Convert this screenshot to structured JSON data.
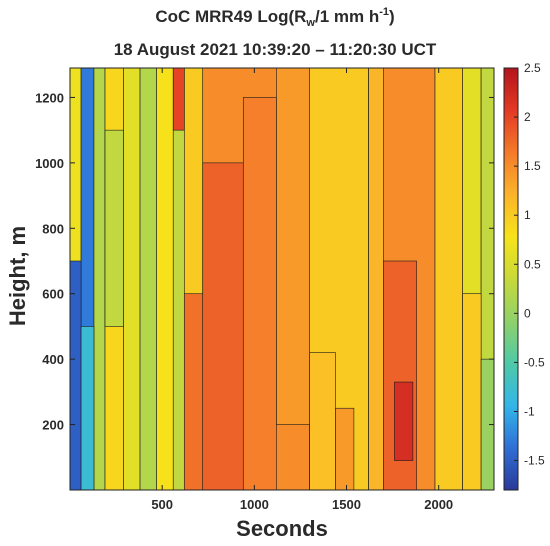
{
  "chart_data": {
    "type": "heatmap",
    "title_line1": {
      "prefix": "CoC MRR49 Log(R",
      "subscript": "w",
      "middle": "/1 mm h",
      "superscript": "-1",
      "suffix": ")"
    },
    "title_line2": "18 August 2021 10:39:20 – 11:20:30 UCT",
    "xlabel": "Seconds",
    "ylabel": "Height, m",
    "xlim": [
      0,
      2300
    ],
    "ylim": [
      0,
      1290
    ],
    "x_ticks": [
      500,
      1000,
      1500,
      2000
    ],
    "x_tick_labels": [
      "500",
      "1000",
      "1500",
      "2000"
    ],
    "y_ticks": [
      200,
      400,
      600,
      800,
      1000,
      1200
    ],
    "y_tick_labels": [
      "200",
      "400",
      "600",
      "800",
      "1000",
      "1200"
    ],
    "colorbar": {
      "min": -1.8,
      "max": 2.5,
      "ticks": [
        -1.5,
        -1,
        -0.5,
        0,
        0.5,
        1,
        1.5,
        2,
        2.5
      ],
      "tick_labels": [
        "-1.5",
        "-1",
        "-0.5",
        "0",
        "0.5",
        "1",
        "1.5",
        "2",
        "2.5"
      ],
      "colors": [
        "#2a3a9a",
        "#2f6fd6",
        "#33b6e8",
        "#4fc9a8",
        "#8fd16a",
        "#c8d93a",
        "#f7e31a",
        "#fbb42a",
        "#f47a2a",
        "#e23a24",
        "#b3141e"
      ]
    },
    "regions": [
      {
        "x": [
          0,
          60
        ],
        "y": [
          0,
          1290
        ],
        "value": 0.7
      },
      {
        "x": [
          60,
          130
        ],
        "y": [
          0,
          1290
        ],
        "value": -1.3
      },
      {
        "x": [
          130,
          190
        ],
        "y": [
          0,
          1290
        ],
        "value": 0.2
      },
      {
        "x": [
          190,
          290
        ],
        "y": [
          0,
          1290
        ],
        "value": 0.9
      },
      {
        "x": [
          290,
          380
        ],
        "y": [
          0,
          1290
        ],
        "value": 0.6
      },
      {
        "x": [
          380,
          470
        ],
        "y": [
          0,
          1290
        ],
        "value": 0.2
      },
      {
        "x": [
          470,
          560
        ],
        "y": [
          0,
          1290
        ],
        "value": 0.8
      },
      {
        "x": [
          560,
          620
        ],
        "y": [
          0,
          1290
        ],
        "value": 0.3
      },
      {
        "x": [
          620,
          720
        ],
        "y": [
          0,
          1290
        ],
        "value": 1.0
      },
      {
        "x": [
          720,
          1300
        ],
        "y": [
          0,
          1290
        ],
        "value": 1.5
      },
      {
        "x": [
          1300,
          1620
        ],
        "y": [
          0,
          1290
        ],
        "value": 1.0
      },
      {
        "x": [
          1620,
          1980
        ],
        "y": [
          0,
          1290
        ],
        "value": 1.5
      },
      {
        "x": [
          1980,
          2130
        ],
        "y": [
          0,
          1290
        ],
        "value": 1.0
      },
      {
        "x": [
          2130,
          2230
        ],
        "y": [
          0,
          1290
        ],
        "value": 0.6
      },
      {
        "x": [
          2230,
          2300
        ],
        "y": [
          0,
          1290
        ],
        "value": 0.3
      },
      {
        "x": [
          0,
          60
        ],
        "y": [
          0,
          700
        ],
        "value": -1.5
      },
      {
        "x": [
          60,
          130
        ],
        "y": [
          0,
          500
        ],
        "value": -0.8
      },
      {
        "x": [
          190,
          290
        ],
        "y": [
          500,
          1100
        ],
        "value": 0.3
      },
      {
        "x": [
          620,
          720
        ],
        "y": [
          0,
          600
        ],
        "value": 1.7
      },
      {
        "x": [
          720,
          940
        ],
        "y": [
          0,
          1000
        ],
        "value": 1.8
      },
      {
        "x": [
          940,
          1120
        ],
        "y": [
          0,
          1200
        ],
        "value": 1.6
      },
      {
        "x": [
          1120,
          1300
        ],
        "y": [
          200,
          1290
        ],
        "value": 1.4
      },
      {
        "x": [
          1300,
          1440
        ],
        "y": [
          0,
          420
        ],
        "value": 1.1
      },
      {
        "x": [
          1440,
          1540
        ],
        "y": [
          0,
          250
        ],
        "value": 1.4
      },
      {
        "x": [
          1620,
          1700
        ],
        "y": [
          0,
          1290
        ],
        "value": 1.2
      },
      {
        "x": [
          1700,
          1880
        ],
        "y": [
          0,
          700
        ],
        "value": 1.8
      },
      {
        "x": [
          1760,
          1860
        ],
        "y": [
          90,
          330
        ],
        "value": 2.2
      },
      {
        "x": [
          560,
          620
        ],
        "y": [
          1100,
          1290
        ],
        "value": 2.0
      },
      {
        "x": [
          2130,
          2230
        ],
        "y": [
          0,
          600
        ],
        "value": 1.0
      },
      {
        "x": [
          2230,
          2300
        ],
        "y": [
          0,
          400
        ],
        "value": 0.0
      }
    ]
  }
}
